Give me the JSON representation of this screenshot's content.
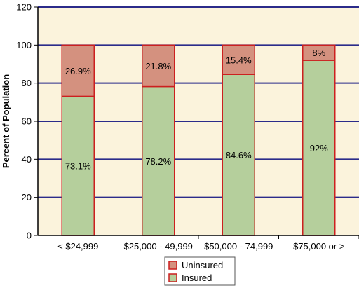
{
  "chart_data": {
    "type": "bar",
    "stacked": true,
    "title": "",
    "xlabel": "",
    "ylabel": "Percent of Population",
    "ylim": [
      0,
      120
    ],
    "yticks": [
      0,
      20,
      40,
      60,
      80,
      100,
      120
    ],
    "categories": [
      "< $24,999",
      "$25,000 - 49,999",
      "$50,000 - 74,999",
      "$75,000 or >"
    ],
    "series": [
      {
        "name": "Insured",
        "values": [
          73.1,
          78.2,
          84.6,
          92
        ],
        "labels": [
          "73.1%",
          "78.2%",
          "84.6%",
          "92%"
        ],
        "color": "#b5cf9c"
      },
      {
        "name": "Uninsured",
        "values": [
          26.9,
          21.8,
          15.4,
          8
        ],
        "labels": [
          "26.9%",
          "21.8%",
          "15.4%",
          "8%"
        ],
        "color": "#d4917f"
      }
    ],
    "grid": true,
    "legend": "bottom-center",
    "colors": {
      "plot_background": "#fbf3dc",
      "gridline": "#2b2b8a",
      "bar_outline": "#cc1f1f"
    }
  }
}
